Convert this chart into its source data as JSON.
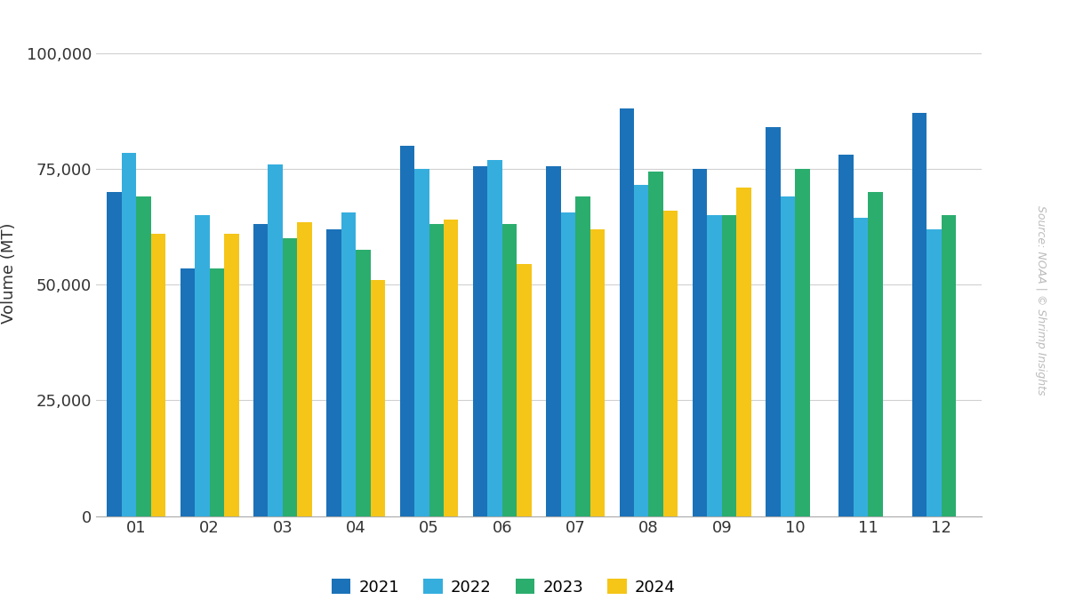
{
  "months": [
    "01",
    "02",
    "03",
    "04",
    "05",
    "06",
    "07",
    "08",
    "09",
    "10",
    "11",
    "12"
  ],
  "series": {
    "2021": [
      70000,
      53500,
      63000,
      62000,
      80000,
      75500,
      75500,
      88000,
      75000,
      84000,
      78000,
      87000
    ],
    "2022": [
      78500,
      65000,
      76000,
      65500,
      75000,
      77000,
      65500,
      71500,
      65000,
      69000,
      64500,
      62000
    ],
    "2023": [
      69000,
      53500,
      60000,
      57500,
      63000,
      63000,
      69000,
      74500,
      65000,
      75000,
      70000,
      65000
    ],
    "2024": [
      61000,
      61000,
      63500,
      51000,
      64000,
      54500,
      62000,
      66000,
      71000,
      null,
      null,
      null
    ]
  },
  "colors": {
    "2021": "#1B72B8",
    "2022": "#35AEDE",
    "2023": "#2BAD6E",
    "2024": "#F5C518"
  },
  "ylabel": "Volume (MT)",
  "ylim": [
    0,
    105000
  ],
  "yticks": [
    0,
    25000,
    50000,
    75000,
    100000
  ],
  "ytick_labels": [
    "0",
    "25,000",
    "50,000",
    "75,000",
    "100,000"
  ],
  "watermark": "Source: NOAA | © Shrimp Insights",
  "background_color": "#ffffff",
  "grid_color": "#d0d0d0"
}
